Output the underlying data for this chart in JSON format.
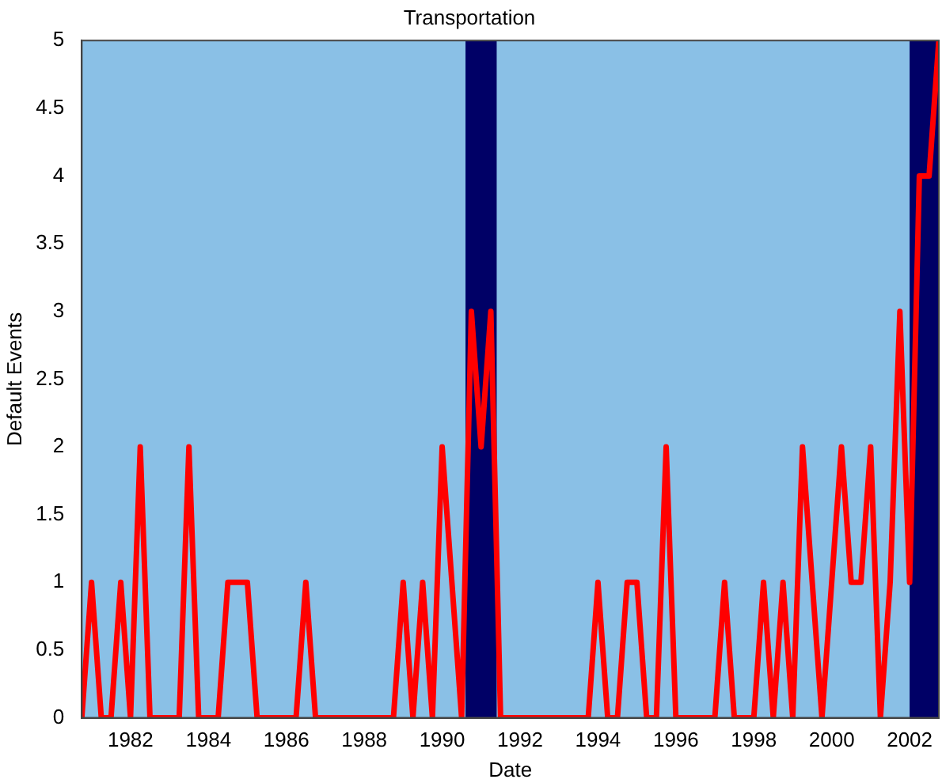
{
  "chart_data": {
    "type": "line",
    "title": "Transportation",
    "xlabel": "Date",
    "ylabel": "Default Events",
    "x": [
      1980.75,
      1981,
      1981.25,
      1981.5,
      1981.75,
      1982,
      1982.25,
      1982.5,
      1982.75,
      1983,
      1983.25,
      1983.5,
      1983.75,
      1984,
      1984.25,
      1984.5,
      1984.75,
      1985,
      1985.25,
      1985.5,
      1985.75,
      1986,
      1986.25,
      1986.5,
      1986.75,
      1987,
      1987.25,
      1987.5,
      1987.75,
      1988,
      1988.25,
      1988.5,
      1988.75,
      1989,
      1989.25,
      1989.5,
      1989.75,
      1990,
      1990.25,
      1990.5,
      1990.75,
      1991,
      1991.25,
      1991.5,
      1991.75,
      1992,
      1992.25,
      1992.5,
      1992.75,
      1993,
      1993.25,
      1993.5,
      1993.75,
      1994,
      1994.25,
      1994.5,
      1994.75,
      1995,
      1995.25,
      1995.5,
      1995.75,
      1996,
      1996.25,
      1996.5,
      1996.75,
      1997,
      1997.25,
      1997.5,
      1997.75,
      1998,
      1998.25,
      1998.5,
      1998.75,
      1999,
      1999.25,
      1999.5,
      1999.75,
      2000,
      2000.25,
      2000.5,
      2000.75,
      2001,
      2001.25,
      2001.5,
      2001.75,
      2002,
      2002.25,
      2002.5,
      2002.75
    ],
    "series": [
      {
        "color": "#ff0000",
        "values": [
          0,
          1,
          0,
          0,
          1,
          0,
          2,
          0,
          0,
          0,
          0,
          2,
          0,
          0,
          0,
          1,
          1,
          1,
          0,
          0,
          0,
          0,
          0,
          1,
          0,
          0,
          0,
          0,
          0,
          0,
          0,
          0,
          0,
          1,
          0,
          1,
          0,
          2,
          1,
          0,
          3,
          2,
          3,
          0,
          0,
          0,
          0,
          0,
          0,
          0,
          0,
          0,
          0,
          1,
          0,
          0,
          1,
          1,
          0,
          0,
          2,
          0,
          0,
          0,
          0,
          0,
          1,
          0,
          0,
          0,
          1,
          0,
          1,
          0,
          2,
          1,
          0,
          1,
          2,
          1,
          1,
          2,
          0,
          1,
          3,
          1,
          4,
          4,
          5
        ]
      }
    ],
    "xlim": [
      1980.75,
      2002.75
    ],
    "xticks": [
      1982,
      1984,
      1986,
      1988,
      1990,
      1992,
      1994,
      1996,
      1998,
      2000,
      2002
    ],
    "ylim": [
      0,
      5
    ],
    "yticks": [
      0,
      0.5,
      1,
      1.5,
      2,
      2.5,
      3,
      3.5,
      4,
      4.5,
      5
    ],
    "bands": [
      {
        "axis": "x",
        "from": 1990.6,
        "to": 1991.4,
        "color": "#000066"
      },
      {
        "axis": "x",
        "from": 2002,
        "to": 2002.75,
        "color": "#000066"
      }
    ],
    "grid": false,
    "legend": false,
    "marker": "none",
    "line_style": "solid"
  }
}
